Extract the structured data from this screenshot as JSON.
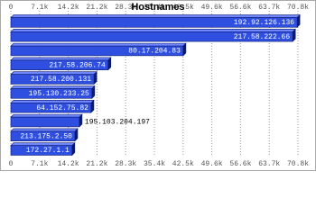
{
  "chart_data": {
    "type": "bar",
    "orientation": "horizontal",
    "title": "Hostnames",
    "categories": [
      "192.92.126.136",
      "217.58.222.66",
      "80.17.204.83",
      "217.58.206.74",
      "217.58.200.131",
      "195.130.233.25",
      "64.152.75.82",
      "195.103.204.197",
      "213.175.2.50",
      "172.27.1.1"
    ],
    "values": [
      70600,
      69500,
      42500,
      24000,
      20500,
      20000,
      19800,
      16900,
      15800,
      15100
    ],
    "color": "#2f4fe0",
    "xlim": [
      0,
      70800
    ],
    "xticks": [
      0,
      {
        "value": 7080,
        "label": "7.1k"
      },
      {
        "value": 14160,
        "label": "14.2k"
      },
      {
        "value": 21240,
        "label": "21.2k"
      },
      {
        "value": 28320,
        "label": "28.3k"
      },
      {
        "value": 35400,
        "label": "35.4k"
      },
      {
        "value": 42480,
        "label": "42.5k"
      },
      {
        "value": 49560,
        "label": "49.6k"
      },
      {
        "value": 56640,
        "label": "56.6k"
      },
      {
        "value": 63720,
        "label": "63.7k"
      },
      {
        "value": 70800,
        "label": "70.8k"
      }
    ],
    "grid": true
  }
}
